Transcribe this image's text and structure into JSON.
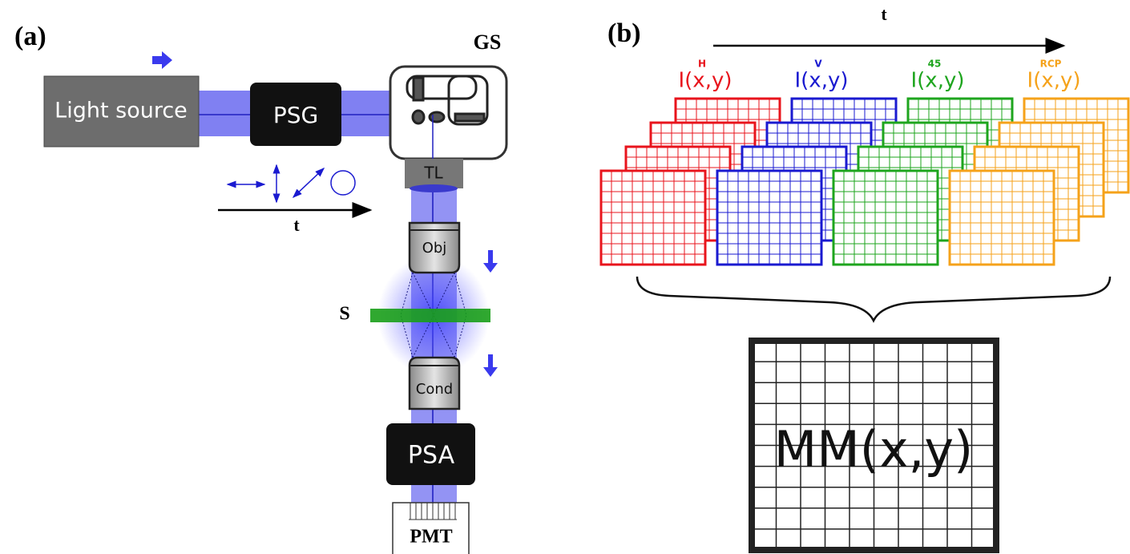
{
  "panel_a": {
    "label": "(a)",
    "gs": "GS",
    "light_source": "Light source",
    "psg": "PSG",
    "tl": "TL",
    "time": "t",
    "obj": "Obj",
    "sample": "S",
    "cond": "Cond",
    "psa": "PSA",
    "pmt": "PMT"
  },
  "panel_b": {
    "label": "(b)",
    "time": "t",
    "stacks": [
      {
        "label": "I(x,y)",
        "superscript": "H",
        "color": "#e8141c"
      },
      {
        "label": "I(x,y)",
        "superscript": "V",
        "color": "#1a1ad0"
      },
      {
        "label": "I(x,y)",
        "superscript": "45",
        "color": "#1ea51e"
      },
      {
        "label": "I(x,y)",
        "superscript": "RCP",
        "color": "#f5a21a"
      }
    ],
    "result": "MM(x,y)"
  }
}
